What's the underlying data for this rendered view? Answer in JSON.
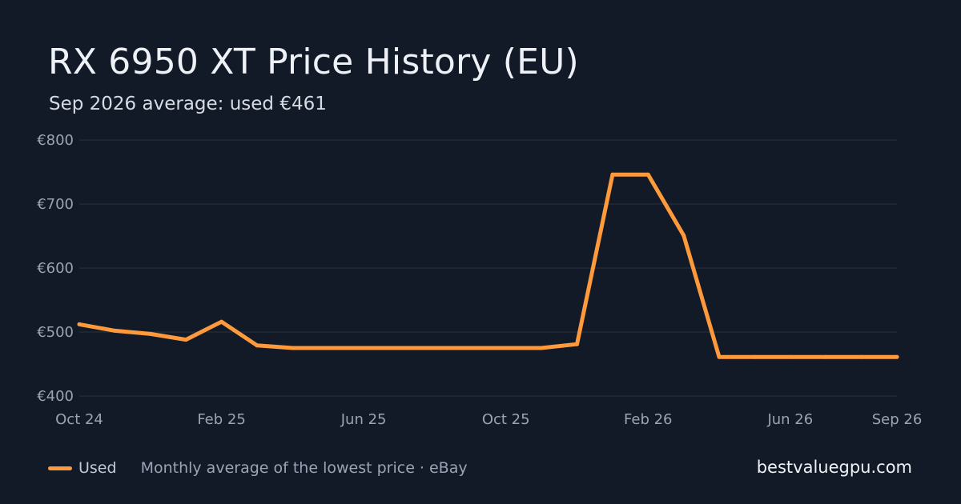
{
  "header": {
    "title": "RX 6950 XT Price History (EU)",
    "subtitle": "Sep 2026 average: used €461"
  },
  "legend": {
    "series_label": "Used",
    "note": "Monthly average of the lowest price · eBay"
  },
  "brand": "bestvaluegpu.com",
  "colors": {
    "background": "#131a27",
    "line": "#ff9a3c",
    "grid": "#283142",
    "axis_text": "#9aa4b4"
  },
  "chart_data": {
    "type": "line",
    "title": "RX 6950 XT Price History (EU)",
    "subtitle": "Sep 2026 average: used €461",
    "x": [
      "2024-10",
      "2024-11",
      "2024-12",
      "2025-01",
      "2025-02",
      "2025-03",
      "2025-04",
      "2025-05",
      "2025-06",
      "2025-07",
      "2025-08",
      "2025-09",
      "2025-10",
      "2025-11",
      "2025-12",
      "2026-01",
      "2026-02",
      "2026-03",
      "2026-04",
      "2026-05",
      "2026-06",
      "2026-07",
      "2026-08",
      "2026-09"
    ],
    "series": [
      {
        "name": "Used",
        "values": [
          512,
          502,
          497,
          488,
          516,
          479,
          475,
          475,
          475,
          475,
          475,
          475,
          475,
          475,
          481,
          746,
          746,
          651,
          461,
          461,
          461,
          461,
          461,
          461
        ]
      }
    ],
    "ylim": [
      400,
      800
    ],
    "y_ticks": [
      400,
      500,
      600,
      700,
      800
    ],
    "y_tick_labels": [
      "€400",
      "€500",
      "€600",
      "€700",
      "€800"
    ],
    "x_ticks": [
      "Oct 24",
      "Feb 25",
      "Jun 25",
      "Oct 25",
      "Feb 26",
      "Jun 26",
      "Sep 26"
    ],
    "x_tick_index": [
      0,
      4,
      8,
      12,
      16,
      20,
      23
    ],
    "grid": true,
    "legend_position": "bottom-left"
  }
}
